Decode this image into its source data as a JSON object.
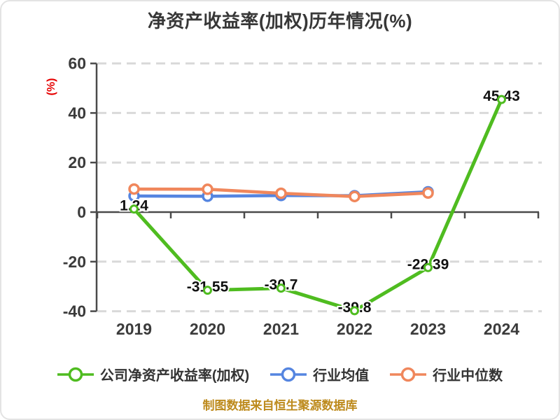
{
  "title": "净资产收益率(加权)历年情况(%)",
  "footer": "制图数据来自恒生聚源数据库",
  "chart_data": {
    "type": "line",
    "title": "净资产收益率(加权)历年情况(%)",
    "categories": [
      "2019",
      "2020",
      "2021",
      "2022",
      "2023",
      "2024"
    ],
    "series": [
      {
        "name": "公司净资产收益率(加权)",
        "color": "#4fbc20",
        "values": [
          1.24,
          -31.55,
          -30.7,
          -39.8,
          -22.39,
          45.43
        ],
        "point_labels": [
          "1.24",
          "-31.55",
          "-30.7",
          "-39.8",
          "-22.39",
          "45.43"
        ]
      },
      {
        "name": "行业均值",
        "color": "#5585e0",
        "values": [
          6.5,
          6.4,
          6.7,
          6.6,
          8.2,
          null
        ],
        "point_labels": null
      },
      {
        "name": "行业中位数",
        "color": "#f0875c",
        "values": [
          9.3,
          9.2,
          7.6,
          6.3,
          7.7,
          null
        ],
        "point_labels": null
      }
    ],
    "xlabel": "",
    "ylabel": "(%)",
    "ylim": [
      -40,
      60
    ],
    "yticks": [
      60,
      40,
      20,
      0,
      -20,
      -40
    ],
    "grid": true,
    "grid_style": "dashed",
    "legend_position": "bottom"
  },
  "colors": {
    "background": "#ffffff",
    "card_border": "#e3e3e3",
    "title": "#373737",
    "axis": "#4a4a4a",
    "tick_label": "#3b3b3b",
    "grid": "#d9d9d9",
    "data_label": "#111111",
    "ylabel": "#e60000",
    "legend_text": "#333333",
    "footer": "#bd8a1c"
  }
}
